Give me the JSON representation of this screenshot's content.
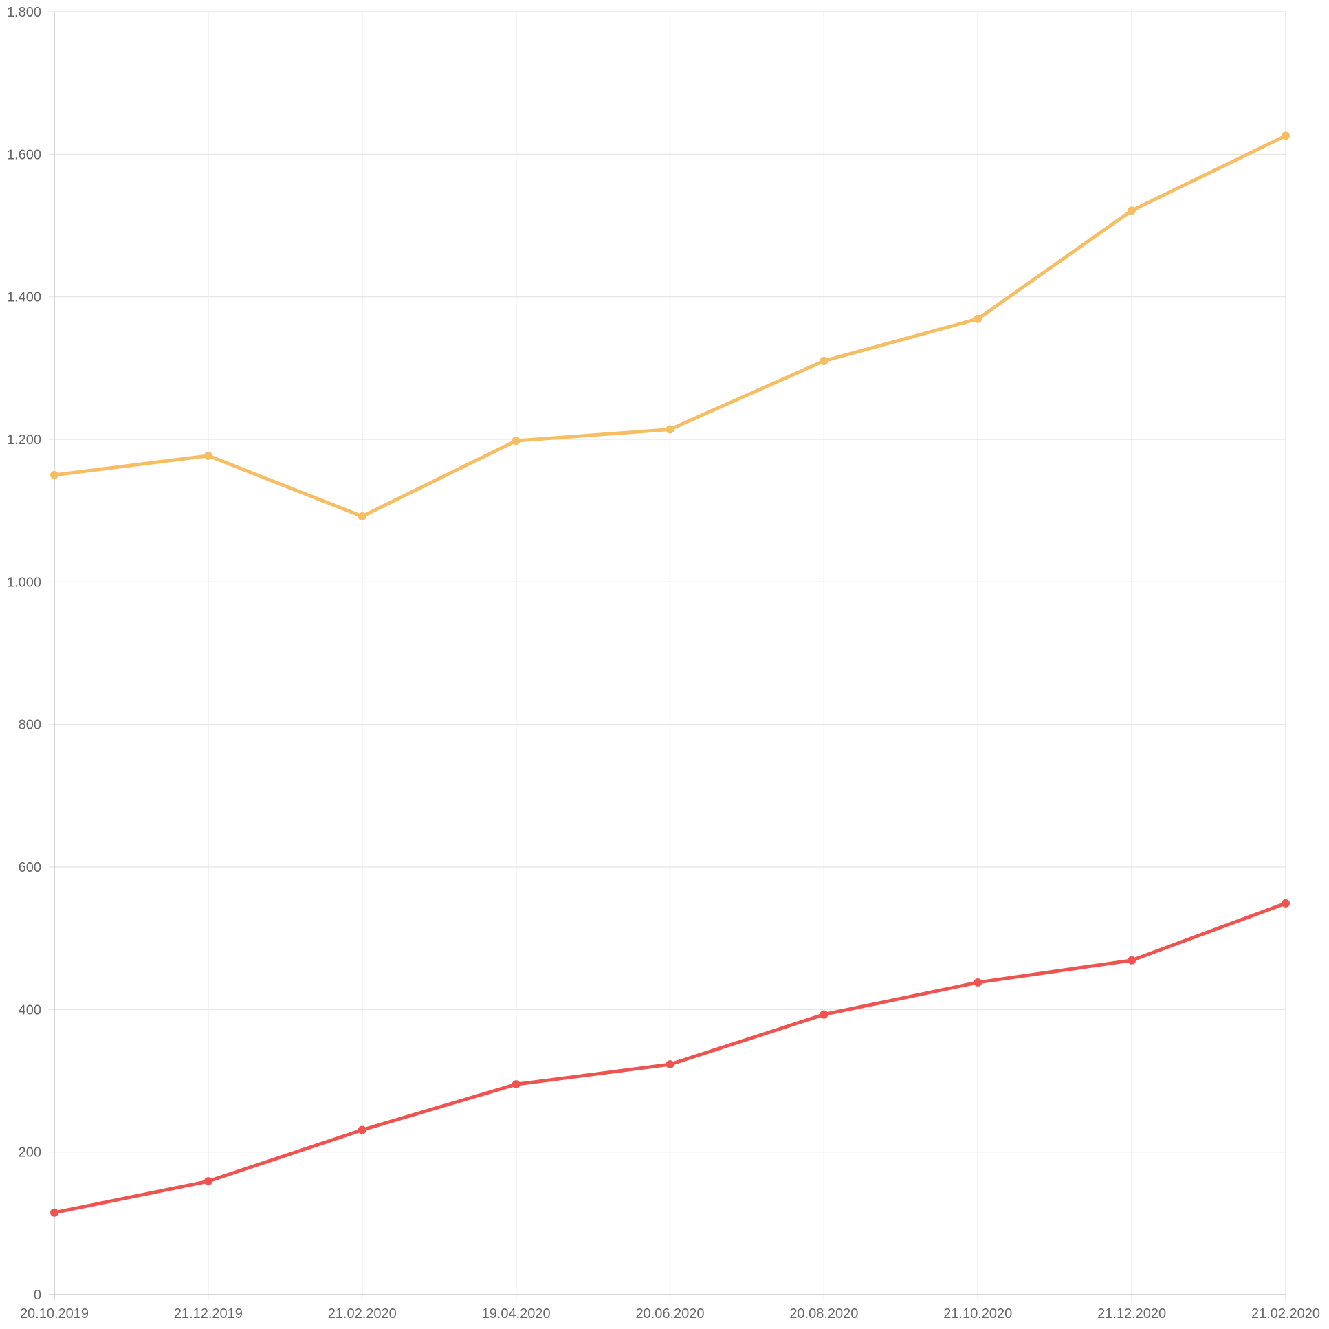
{
  "chart_data": {
    "type": "line",
    "categories": [
      "20.10.2019",
      "21.12.2019",
      "21.02.2020",
      "19.04.2020",
      "20.06.2020",
      "20.08.2020",
      "21.10.2020",
      "21.12.2020",
      "21.02.2020"
    ],
    "series": [
      {
        "color": "#f5bd64",
        "values": [
          1150,
          1177,
          1092,
          1198,
          1214,
          1310,
          1369,
          1521,
          1626
        ]
      },
      {
        "color": "#ef5350",
        "values": [
          115,
          159,
          231,
          295,
          323,
          393,
          438,
          469,
          549
        ]
      }
    ],
    "ylim": [
      0,
      1800
    ],
    "y_ticks": [
      0,
      200,
      400,
      600,
      800,
      1000,
      1200,
      1400,
      1600,
      1800
    ],
    "y_tick_labels": [
      "0",
      "200",
      "400",
      "600",
      "800",
      "1.000",
      "1.200",
      "1.400",
      "1.600",
      "1.800"
    ],
    "grid": true
  }
}
